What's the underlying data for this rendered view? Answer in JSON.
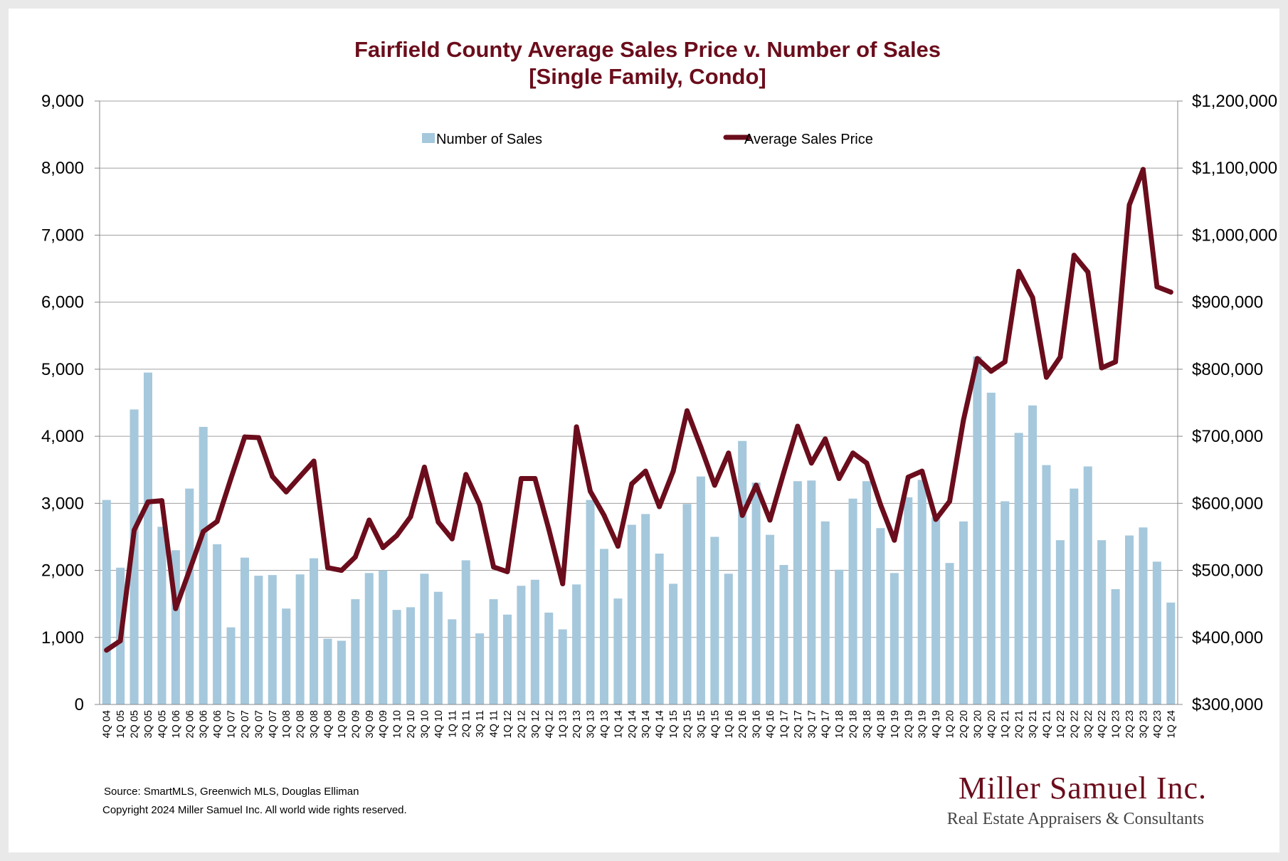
{
  "chart_data": {
    "type": "bar+line",
    "title": "Fairfield County Average Sales Price v. Number of Sales",
    "subtitle": "[Single Family, Condo]",
    "categories": [
      "4Q 04",
      "1Q 05",
      "2Q 05",
      "3Q 05",
      "4Q 05",
      "1Q 06",
      "2Q 06",
      "3Q 06",
      "4Q 06",
      "1Q 07",
      "2Q 07",
      "3Q 07",
      "4Q 07",
      "1Q 08",
      "2Q 08",
      "3Q 08",
      "4Q 08",
      "1Q 09",
      "2Q 09",
      "3Q 09",
      "4Q 09",
      "1Q 10",
      "2Q 10",
      "3Q 10",
      "4Q 10",
      "1Q 11",
      "2Q 11",
      "3Q 11",
      "4Q 11",
      "1Q 12",
      "2Q 12",
      "3Q 12",
      "4Q 12",
      "1Q 13",
      "2Q 13",
      "3Q 13",
      "4Q 13",
      "1Q 14",
      "2Q 14",
      "3Q 14",
      "4Q 14",
      "1Q 15",
      "2Q 15",
      "3Q 15",
      "4Q 15",
      "1Q 16",
      "2Q 16",
      "3Q 16",
      "4Q 16",
      "1Q 17",
      "2Q 17",
      "3Q 17",
      "4Q 17",
      "1Q 18",
      "2Q 18",
      "3Q 18",
      "4Q 18",
      "1Q 19",
      "2Q 19",
      "3Q 19",
      "4Q 19",
      "1Q 20",
      "2Q 20",
      "3Q 20",
      "4Q 20",
      "1Q 21",
      "2Q 21",
      "3Q 21",
      "4Q 21",
      "1Q 22",
      "2Q 22",
      "3Q 22",
      "4Q 22",
      "1Q 23",
      "2Q 23",
      "3Q 23",
      "4Q 23",
      "1Q 24"
    ],
    "series": [
      {
        "name": "Number of Sales",
        "type": "bar",
        "axis": "left",
        "color": "#a5c8dc",
        "values": [
          3050,
          2040,
          4400,
          4950,
          2650,
          2300,
          3220,
          4140,
          2390,
          1150,
          2190,
          1920,
          1930,
          1430,
          1940,
          2180,
          980,
          950,
          1570,
          1960,
          2000,
          1410,
          1450,
          1950,
          1680,
          1270,
          2150,
          1060,
          1570,
          1340,
          1770,
          1860,
          1370,
          1120,
          1790,
          3050,
          2320,
          1580,
          2680,
          2840,
          2250,
          1800,
          2990,
          3400,
          2500,
          1950,
          3930,
          3310,
          2530,
          2080,
          3330,
          3340,
          2730,
          2010,
          3070,
          3330,
          2630,
          1960,
          3090,
          3350,
          2790,
          2110,
          2730,
          5190,
          4650,
          3030,
          4050,
          4460,
          3570,
          2450,
          3220,
          3550,
          2450,
          1720,
          2520,
          2640,
          2130,
          1520
        ]
      },
      {
        "name": "Average Sales Price",
        "type": "line",
        "axis": "right",
        "color": "#6b0d1c",
        "values": [
          381000,
          395000,
          560000,
          602000,
          604000,
          443000,
          500000,
          558000,
          573000,
          637000,
          699000,
          698000,
          640000,
          617000,
          640000,
          663000,
          504000,
          500000,
          520000,
          575000,
          534000,
          552000,
          580000,
          654000,
          572000,
          547000,
          643000,
          598000,
          505000,
          498000,
          637000,
          637000,
          561000,
          480000,
          714000,
          618000,
          582000,
          536000,
          629000,
          648000,
          595000,
          648000,
          738000,
          684000,
          627000,
          675000,
          582000,
          627000,
          575000,
          646000,
          715000,
          660000,
          696000,
          637000,
          675000,
          660000,
          598000,
          545000,
          639000,
          648000,
          576000,
          603000,
          724000,
          816000,
          797000,
          811000,
          946000,
          907000,
          788000,
          818000,
          970000,
          945000,
          802000,
          811000,
          1045000,
          1098000,
          923000,
          915000
        ]
      }
    ],
    "y_left": {
      "min": 0,
      "max": 9000,
      "step": 1000,
      "ticks": [
        "0",
        "1,000",
        "2,000",
        "3,000",
        "4,000",
        "5,000",
        "6,000",
        "7,000",
        "8,000",
        "9,000"
      ]
    },
    "y_right": {
      "min": 300000,
      "max": 1200000,
      "step": 100000,
      "ticks": [
        "$300,000",
        "$400,000",
        "$500,000",
        "$600,000",
        "$700,000",
        "$800,000",
        "$900,000",
        "$1,000,000",
        "$1,100,000",
        "$1,200,000"
      ]
    },
    "grid": true,
    "legend_position": "top-center"
  },
  "legend": {
    "sales_label": "Number of Sales",
    "price_label": "Average Sales Price"
  },
  "footer": {
    "source": "Source: SmartMLS, Greenwich MLS, Douglas Elliman",
    "copyright": "Copyright 2024 Miller Samuel Inc.  All world wide rights reserved."
  },
  "logo": {
    "name": "Miller Samuel Inc.",
    "tagline": "Real Estate Appraisers & Consultants"
  },
  "colors": {
    "bar": "#a5c8dc",
    "line": "#6b0d1c",
    "title": "#6b0d1c",
    "grid": "#a0a0a0"
  }
}
